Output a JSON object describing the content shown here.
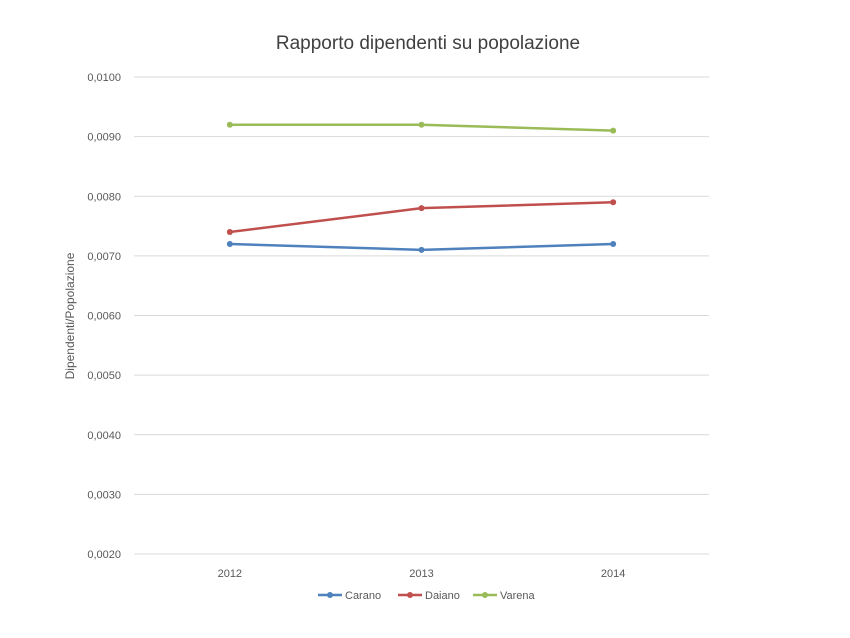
{
  "chart_data": {
    "type": "line",
    "title": "Rapporto dipendenti su popolazione",
    "xlabel": "",
    "ylabel": "Dipendenti/Popolazione",
    "categories": [
      "2012",
      "2013",
      "2014"
    ],
    "ylim": [
      0.002,
      0.01
    ],
    "yticks": [
      "0,0020",
      "0,0030",
      "0,0040",
      "0,0050",
      "0,0060",
      "0,0070",
      "0,0080",
      "0,0090",
      "0,0100"
    ],
    "grid": true,
    "legend_position": "bottom",
    "series": [
      {
        "name": "Carano",
        "color": "#4F81BD",
        "values": [
          0.0072,
          0.0071,
          0.0072
        ]
      },
      {
        "name": "Daiano",
        "color": "#C0504D",
        "values": [
          0.0074,
          0.0078,
          0.0079
        ]
      },
      {
        "name": "Varena",
        "color": "#9BBB59",
        "values": [
          0.0092,
          0.0092,
          0.0091
        ]
      }
    ]
  }
}
